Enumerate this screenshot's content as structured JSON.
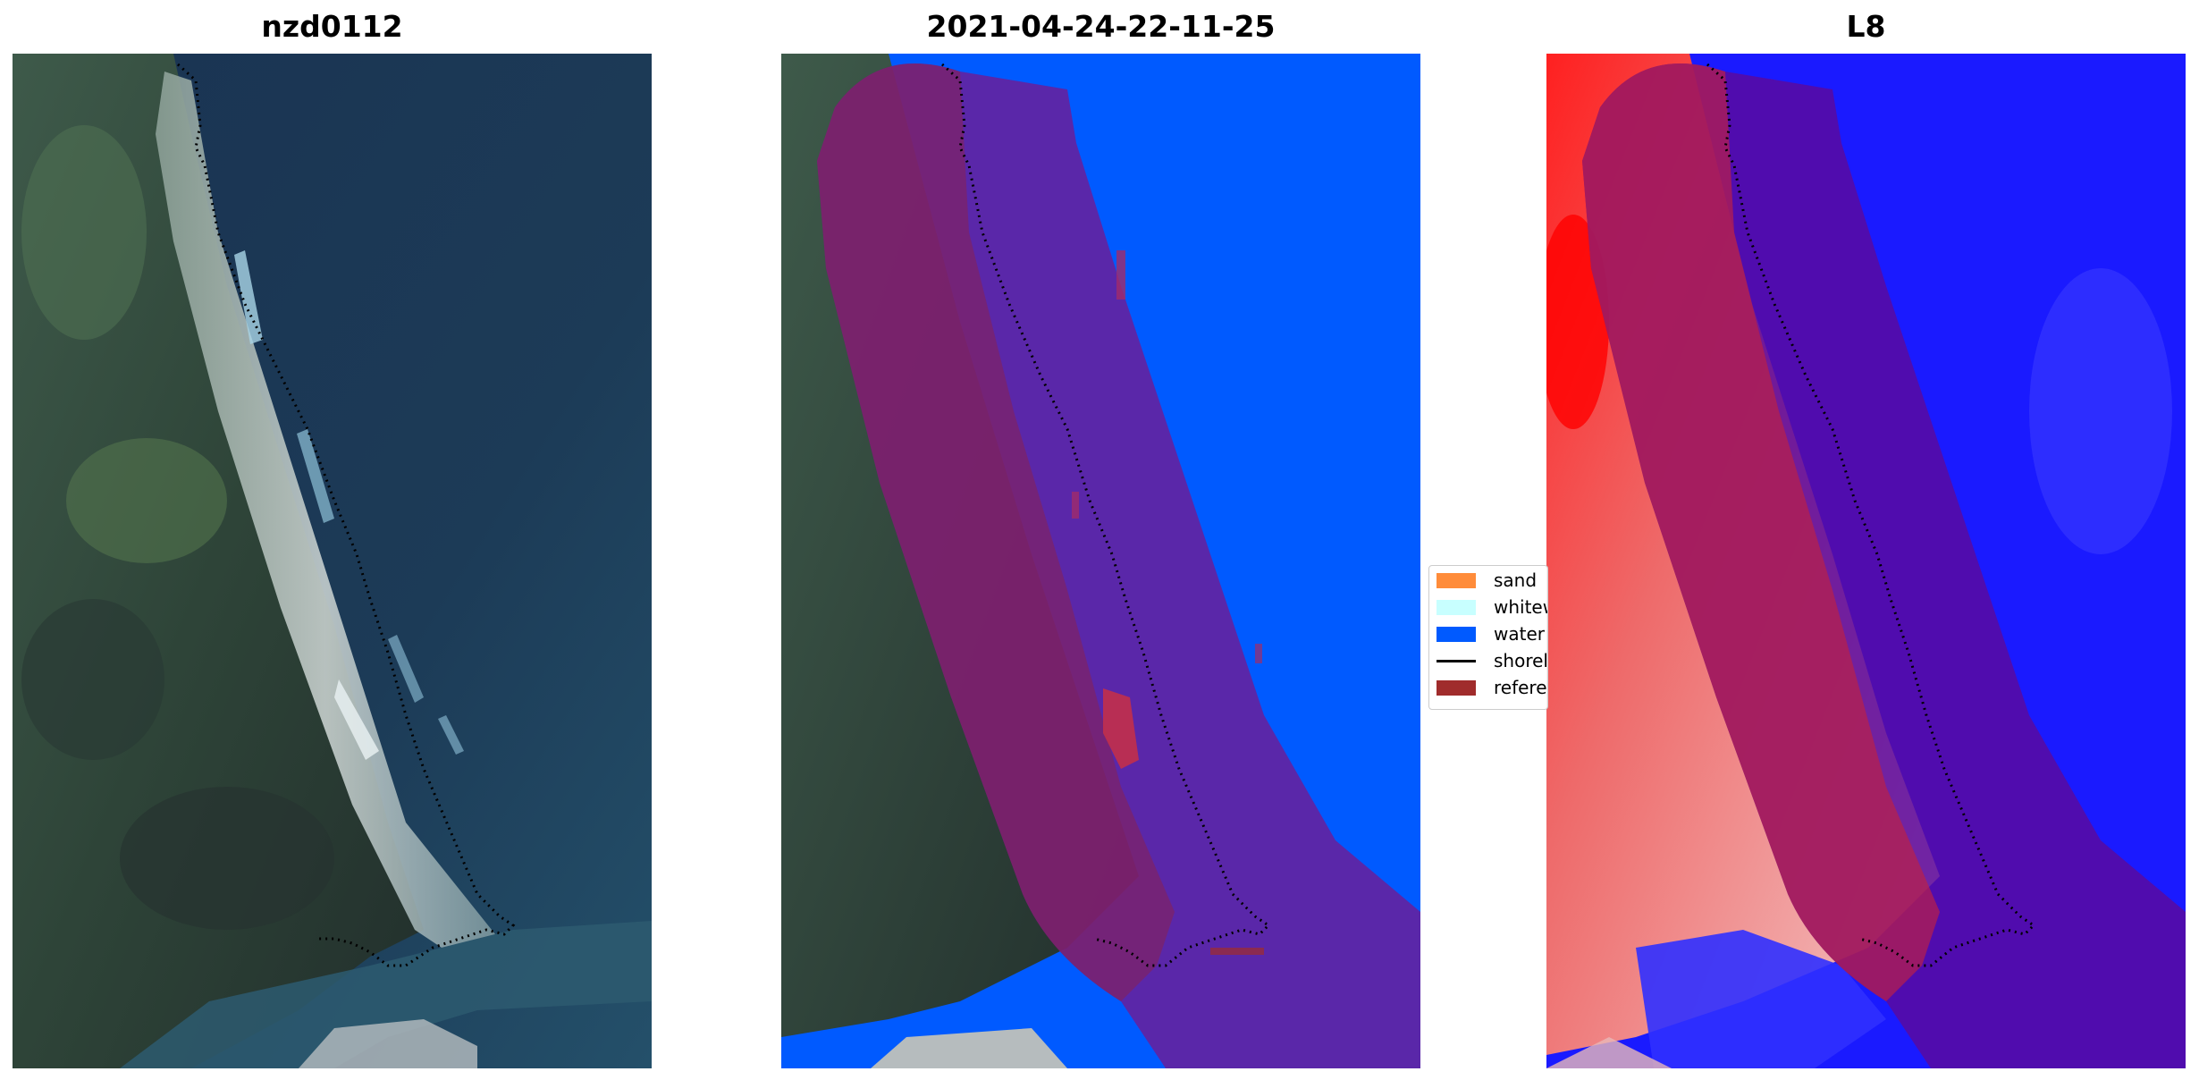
{
  "panels": [
    {
      "title": "nzd0112"
    },
    {
      "title": "2021-04-24-22-11-25"
    },
    {
      "title": "L8"
    }
  ],
  "legend": {
    "items": [
      {
        "label": "sand",
        "color": "#ff8c3a"
      },
      {
        "label": "whitewater",
        "color": "#c8ffff"
      },
      {
        "label": "water",
        "color": "#005aff"
      },
      {
        "label": "shoreline",
        "color": "#000000"
      },
      {
        "label": "reference shoreline",
        "color": "#a02c2c"
      }
    ]
  },
  "colors": {
    "sand": "#ff8c3a",
    "whitewater": "#c8ffff",
    "water": "#005aff",
    "buffer_overlay": "#6a1e9a",
    "reference": "#a02c2c"
  }
}
